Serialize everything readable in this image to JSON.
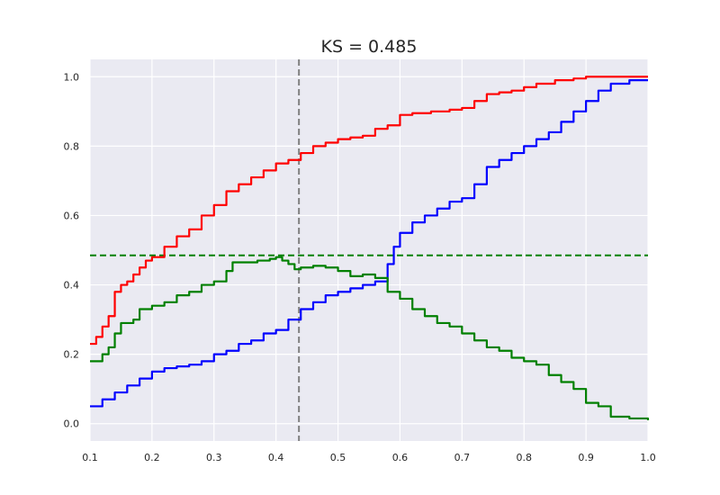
{
  "chart_data": {
    "type": "line",
    "title": "KS = 0.485",
    "xlabel": "",
    "ylabel": "",
    "xlim": [
      0.1,
      1.0
    ],
    "ylim": [
      -0.05,
      1.05
    ],
    "x_ticks": [
      "0.1",
      "0.2",
      "0.3",
      "0.4",
      "0.5",
      "0.6",
      "0.7",
      "0.8",
      "0.9",
      "1.0"
    ],
    "y_ticks": [
      "0.0",
      "0.2",
      "0.4",
      "0.6",
      "0.8",
      "1.0"
    ],
    "grid": true,
    "background": "#eaeaf2",
    "series": [
      {
        "color": "#ff0000",
        "points": [
          [
            0.1,
            0.23
          ],
          [
            0.11,
            0.25
          ],
          [
            0.12,
            0.28
          ],
          [
            0.13,
            0.31
          ],
          [
            0.14,
            0.38
          ],
          [
            0.15,
            0.4
          ],
          [
            0.16,
            0.41
          ],
          [
            0.17,
            0.43
          ],
          [
            0.18,
            0.45
          ],
          [
            0.19,
            0.47
          ],
          [
            0.2,
            0.48
          ],
          [
            0.22,
            0.51
          ],
          [
            0.24,
            0.54
          ],
          [
            0.26,
            0.56
          ],
          [
            0.28,
            0.6
          ],
          [
            0.3,
            0.63
          ],
          [
            0.32,
            0.67
          ],
          [
            0.34,
            0.69
          ],
          [
            0.36,
            0.71
          ],
          [
            0.38,
            0.73
          ],
          [
            0.4,
            0.75
          ],
          [
            0.42,
            0.76
          ],
          [
            0.44,
            0.78
          ],
          [
            0.46,
            0.8
          ],
          [
            0.48,
            0.81
          ],
          [
            0.5,
            0.82
          ],
          [
            0.52,
            0.825
          ],
          [
            0.54,
            0.83
          ],
          [
            0.56,
            0.85
          ],
          [
            0.58,
            0.86
          ],
          [
            0.6,
            0.89
          ],
          [
            0.62,
            0.895
          ],
          [
            0.65,
            0.9
          ],
          [
            0.68,
            0.905
          ],
          [
            0.7,
            0.91
          ],
          [
            0.72,
            0.93
          ],
          [
            0.74,
            0.95
          ],
          [
            0.76,
            0.955
          ],
          [
            0.78,
            0.96
          ],
          [
            0.8,
            0.97
          ],
          [
            0.82,
            0.98
          ],
          [
            0.85,
            0.99
          ],
          [
            0.88,
            0.995
          ],
          [
            0.9,
            1.0
          ],
          [
            1.0,
            1.0
          ]
        ]
      },
      {
        "color": "#0000ff",
        "points": [
          [
            0.1,
            0.05
          ],
          [
            0.12,
            0.07
          ],
          [
            0.14,
            0.09
          ],
          [
            0.16,
            0.11
          ],
          [
            0.18,
            0.13
          ],
          [
            0.2,
            0.15
          ],
          [
            0.22,
            0.16
          ],
          [
            0.24,
            0.165
          ],
          [
            0.26,
            0.17
          ],
          [
            0.28,
            0.18
          ],
          [
            0.3,
            0.2
          ],
          [
            0.32,
            0.21
          ],
          [
            0.34,
            0.23
          ],
          [
            0.36,
            0.24
          ],
          [
            0.38,
            0.26
          ],
          [
            0.4,
            0.27
          ],
          [
            0.42,
            0.3
          ],
          [
            0.44,
            0.33
          ],
          [
            0.46,
            0.35
          ],
          [
            0.48,
            0.37
          ],
          [
            0.5,
            0.38
          ],
          [
            0.52,
            0.39
          ],
          [
            0.54,
            0.4
          ],
          [
            0.56,
            0.41
          ],
          [
            0.58,
            0.46
          ],
          [
            0.59,
            0.51
          ],
          [
            0.6,
            0.55
          ],
          [
            0.62,
            0.58
          ],
          [
            0.64,
            0.6
          ],
          [
            0.66,
            0.62
          ],
          [
            0.68,
            0.64
          ],
          [
            0.7,
            0.65
          ],
          [
            0.72,
            0.69
          ],
          [
            0.74,
            0.74
          ],
          [
            0.76,
            0.76
          ],
          [
            0.78,
            0.78
          ],
          [
            0.8,
            0.8
          ],
          [
            0.82,
            0.82
          ],
          [
            0.84,
            0.84
          ],
          [
            0.86,
            0.87
          ],
          [
            0.88,
            0.9
          ],
          [
            0.9,
            0.93
          ],
          [
            0.92,
            0.96
          ],
          [
            0.94,
            0.98
          ],
          [
            0.97,
            0.99
          ],
          [
            1.0,
            0.99
          ]
        ]
      },
      {
        "color": "#008000",
        "points": [
          [
            0.1,
            0.18
          ],
          [
            0.12,
            0.2
          ],
          [
            0.13,
            0.22
          ],
          [
            0.14,
            0.26
          ],
          [
            0.15,
            0.29
          ],
          [
            0.17,
            0.3
          ],
          [
            0.18,
            0.33
          ],
          [
            0.2,
            0.34
          ],
          [
            0.22,
            0.35
          ],
          [
            0.24,
            0.37
          ],
          [
            0.26,
            0.38
          ],
          [
            0.28,
            0.4
          ],
          [
            0.3,
            0.41
          ],
          [
            0.32,
            0.44
          ],
          [
            0.33,
            0.465
          ],
          [
            0.35,
            0.465
          ],
          [
            0.37,
            0.47
          ],
          [
            0.39,
            0.475
          ],
          [
            0.4,
            0.48
          ],
          [
            0.41,
            0.47
          ],
          [
            0.42,
            0.46
          ],
          [
            0.43,
            0.445
          ],
          [
            0.44,
            0.45
          ],
          [
            0.46,
            0.455
          ],
          [
            0.48,
            0.45
          ],
          [
            0.5,
            0.44
          ],
          [
            0.52,
            0.425
          ],
          [
            0.54,
            0.43
          ],
          [
            0.56,
            0.42
          ],
          [
            0.58,
            0.38
          ],
          [
            0.6,
            0.36
          ],
          [
            0.62,
            0.33
          ],
          [
            0.64,
            0.31
          ],
          [
            0.66,
            0.29
          ],
          [
            0.68,
            0.28
          ],
          [
            0.7,
            0.26
          ],
          [
            0.72,
            0.24
          ],
          [
            0.74,
            0.22
          ],
          [
            0.76,
            0.21
          ],
          [
            0.78,
            0.19
          ],
          [
            0.8,
            0.18
          ],
          [
            0.82,
            0.17
          ],
          [
            0.84,
            0.14
          ],
          [
            0.86,
            0.12
          ],
          [
            0.88,
            0.1
          ],
          [
            0.9,
            0.06
          ],
          [
            0.92,
            0.05
          ],
          [
            0.94,
            0.02
          ],
          [
            0.97,
            0.015
          ],
          [
            1.0,
            0.01
          ]
        ]
      }
    ],
    "reference_lines": [
      {
        "orientation": "vertical",
        "value": 0.437,
        "color": "#808080",
        "style": "dashed"
      },
      {
        "orientation": "horizontal",
        "value": 0.485,
        "color": "#008000",
        "style": "dashed"
      }
    ]
  }
}
